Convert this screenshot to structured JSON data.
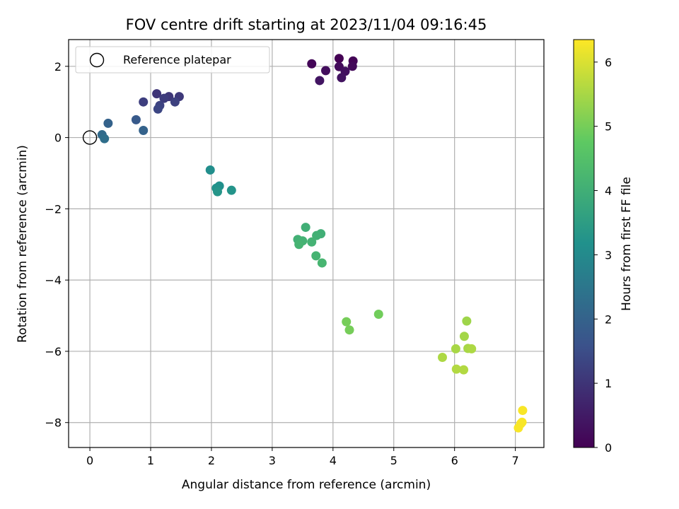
{
  "chart_data": {
    "type": "scatter",
    "title": "FOV centre drift starting at 2023/11/04 09:16:45",
    "xlabel": "Angular distance from reference (arcmin)",
    "ylabel": "Rotation from reference (arcmin)",
    "xlim": [
      -0.35,
      7.47
    ],
    "ylim": [
      -8.7,
      2.75
    ],
    "xticks": [
      0,
      1,
      2,
      3,
      4,
      5,
      6,
      7
    ],
    "xtick_labels": [
      "0",
      "1",
      "2",
      "3",
      "4",
      "5",
      "6",
      "7"
    ],
    "yticks": [
      2,
      0,
      -2,
      -4,
      -6,
      -8
    ],
    "ytick_labels": [
      "2",
      "0",
      "−2",
      "−4",
      "−6",
      "−8"
    ],
    "grid": true,
    "legend": {
      "position": "top-left",
      "entries": [
        {
          "label": "Reference platepar",
          "marker": "open-circle",
          "color": "#000000"
        }
      ]
    },
    "reference_point": {
      "x": 0,
      "y": 0
    },
    "colormap": "viridis",
    "colormap_stops": [
      "#440154",
      "#3b528b",
      "#21918c",
      "#5ec962",
      "#fde725"
    ],
    "colorbar": {
      "label": "Hours from first FF file",
      "range": [
        0,
        6.35
      ],
      "ticks": [
        0,
        1,
        2,
        3,
        4,
        5,
        6
      ],
      "tick_labels": [
        "0",
        "1",
        "2",
        "3",
        "4",
        "5",
        "6"
      ]
    },
    "series": [
      {
        "points": [
          {
            "x": 4.1,
            "y": 2.22,
            "c": 0.0
          },
          {
            "x": 4.33,
            "y": 2.15,
            "c": 0.05
          },
          {
            "x": 3.65,
            "y": 2.07,
            "c": 0.1
          },
          {
            "x": 4.32,
            "y": 2.0,
            "c": 0.15
          },
          {
            "x": 4.1,
            "y": 1.99,
            "c": 0.2
          },
          {
            "x": 3.88,
            "y": 1.88,
            "c": 0.25
          },
          {
            "x": 4.2,
            "y": 1.86,
            "c": 0.3
          },
          {
            "x": 4.14,
            "y": 1.68,
            "c": 0.35
          },
          {
            "x": 3.78,
            "y": 1.6,
            "c": 0.4
          },
          {
            "x": 1.1,
            "y": 1.23,
            "c": 1.0
          },
          {
            "x": 1.3,
            "y": 1.15,
            "c": 1.05
          },
          {
            "x": 1.47,
            "y": 1.15,
            "c": 1.1
          },
          {
            "x": 1.22,
            "y": 1.1,
            "c": 1.15
          },
          {
            "x": 0.88,
            "y": 1.0,
            "c": 1.2
          },
          {
            "x": 1.4,
            "y": 1.0,
            "c": 1.25
          },
          {
            "x": 1.15,
            "y": 0.9,
            "c": 1.3
          },
          {
            "x": 1.12,
            "y": 0.8,
            "c": 1.35
          },
          {
            "x": 0.76,
            "y": 0.5,
            "c": 1.8
          },
          {
            "x": 0.3,
            "y": 0.4,
            "c": 2.0
          },
          {
            "x": 0.88,
            "y": 0.2,
            "c": 2.0
          },
          {
            "x": 0.2,
            "y": 0.08,
            "c": 2.2
          },
          {
            "x": 0.24,
            "y": -0.03,
            "c": 2.3
          },
          {
            "x": 1.98,
            "y": -0.91,
            "c": 3.1
          },
          {
            "x": 2.13,
            "y": -1.36,
            "c": 3.15
          },
          {
            "x": 2.08,
            "y": -1.42,
            "c": 3.2
          },
          {
            "x": 2.33,
            "y": -1.48,
            "c": 3.25
          },
          {
            "x": 2.1,
            "y": -1.52,
            "c": 3.3
          },
          {
            "x": 3.55,
            "y": -2.52,
            "c": 4.0
          },
          {
            "x": 3.8,
            "y": -2.7,
            "c": 4.0
          },
          {
            "x": 3.73,
            "y": -2.75,
            "c": 4.05
          },
          {
            "x": 3.42,
            "y": -2.86,
            "c": 4.05
          },
          {
            "x": 3.5,
            "y": -2.9,
            "c": 4.1
          },
          {
            "x": 3.65,
            "y": -2.93,
            "c": 4.1
          },
          {
            "x": 3.44,
            "y": -3.0,
            "c": 4.15
          },
          {
            "x": 3.72,
            "y": -3.32,
            "c": 4.15
          },
          {
            "x": 3.82,
            "y": -3.52,
            "c": 4.2
          },
          {
            "x": 4.75,
            "y": -4.96,
            "c": 4.95
          },
          {
            "x": 4.22,
            "y": -5.17,
            "c": 5.0
          },
          {
            "x": 4.27,
            "y": -5.4,
            "c": 5.0
          },
          {
            "x": 6.2,
            "y": -5.15,
            "c": 5.4
          },
          {
            "x": 6.16,
            "y": -5.58,
            "c": 5.45
          },
          {
            "x": 6.02,
            "y": -5.93,
            "c": 5.5
          },
          {
            "x": 6.22,
            "y": -5.92,
            "c": 5.5
          },
          {
            "x": 6.28,
            "y": -5.93,
            "c": 5.55
          },
          {
            "x": 5.8,
            "y": -6.17,
            "c": 5.55
          },
          {
            "x": 6.03,
            "y": -6.5,
            "c": 5.6
          },
          {
            "x": 6.15,
            "y": -6.52,
            "c": 5.6
          },
          {
            "x": 7.12,
            "y": -7.66,
            "c": 6.3
          },
          {
            "x": 7.11,
            "y": -7.99,
            "c": 6.3
          },
          {
            "x": 7.09,
            "y": -8.03,
            "c": 6.3
          },
          {
            "x": 7.05,
            "y": -8.15,
            "c": 6.3
          }
        ]
      }
    ]
  }
}
